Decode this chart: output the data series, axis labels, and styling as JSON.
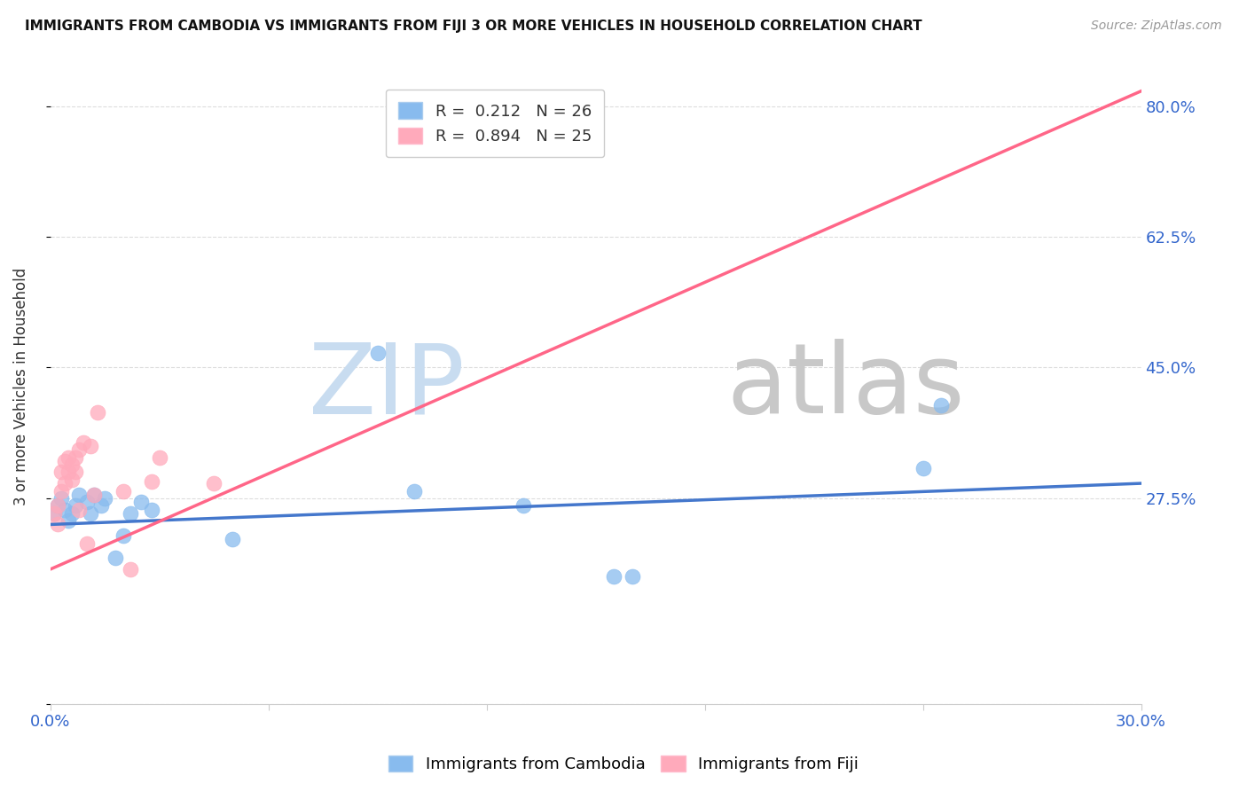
{
  "title": "IMMIGRANTS FROM CAMBODIA VS IMMIGRANTS FROM FIJI 3 OR MORE VEHICLES IN HOUSEHOLD CORRELATION CHART",
  "source": "Source: ZipAtlas.com",
  "ylabel": "3 or more Vehicles in Household",
  "legend_cambodia": "Immigrants from Cambodia",
  "legend_fiji": "Immigrants from Fiji",
  "R_cambodia": 0.212,
  "N_cambodia": 26,
  "R_fiji": 0.894,
  "N_fiji": 25,
  "color_cambodia": "#88BBEE",
  "color_fiji": "#FFAABB",
  "color_line_cambodia": "#4477CC",
  "color_line_fiji": "#FF6688",
  "watermark_zip": "ZIP",
  "watermark_atlas": "atlas",
  "watermark_color_zip": "#C8DCF0",
  "watermark_color_atlas": "#C8C8C8",
  "xmin": 0.0,
  "xmax": 0.3,
  "ymin": 0.0,
  "ymax": 0.85,
  "yticks_right": [
    0.275,
    0.45,
    0.625,
    0.8
  ],
  "ytick_labels_right": [
    "27.5%",
    "45.0%",
    "62.5%",
    "80.0%"
  ],
  "xticks": [
    0.0,
    0.06,
    0.12,
    0.18,
    0.24,
    0.3
  ],
  "xtick_labels": [
    "0.0%",
    "",
    "",
    "",
    "",
    "30.0%"
  ],
  "cam_line_x0": 0.0,
  "cam_line_x1": 0.3,
  "cam_line_y0": 0.24,
  "cam_line_y1": 0.295,
  "fiji_line_x0": 0.0,
  "fiji_line_x1": 0.3,
  "fiji_line_y0": 0.18,
  "fiji_line_y1": 0.82,
  "cambodia_x": [
    0.001,
    0.002,
    0.003,
    0.004,
    0.005,
    0.006,
    0.007,
    0.008,
    0.01,
    0.011,
    0.012,
    0.014,
    0.015,
    0.018,
    0.02,
    0.022,
    0.025,
    0.028,
    0.05,
    0.09,
    0.1,
    0.13,
    0.155,
    0.16,
    0.24,
    0.245
  ],
  "cambodia_y": [
    0.255,
    0.265,
    0.275,
    0.26,
    0.245,
    0.255,
    0.265,
    0.28,
    0.27,
    0.255,
    0.28,
    0.265,
    0.275,
    0.195,
    0.225,
    0.255,
    0.27,
    0.26,
    0.22,
    0.47,
    0.285,
    0.265,
    0.17,
    0.17,
    0.315,
    0.4
  ],
  "fiji_x": [
    0.001,
    0.002,
    0.002,
    0.003,
    0.003,
    0.004,
    0.004,
    0.005,
    0.005,
    0.006,
    0.006,
    0.007,
    0.007,
    0.008,
    0.008,
    0.009,
    0.01,
    0.011,
    0.012,
    0.013,
    0.02,
    0.022,
    0.028,
    0.03,
    0.045
  ],
  "fiji_y": [
    0.255,
    0.24,
    0.265,
    0.285,
    0.31,
    0.295,
    0.325,
    0.31,
    0.33,
    0.3,
    0.32,
    0.31,
    0.33,
    0.34,
    0.26,
    0.35,
    0.215,
    0.345,
    0.28,
    0.39,
    0.285,
    0.18,
    0.298,
    0.33,
    0.295
  ],
  "background_color": "#FFFFFF",
  "grid_color": "#DDDDDD"
}
